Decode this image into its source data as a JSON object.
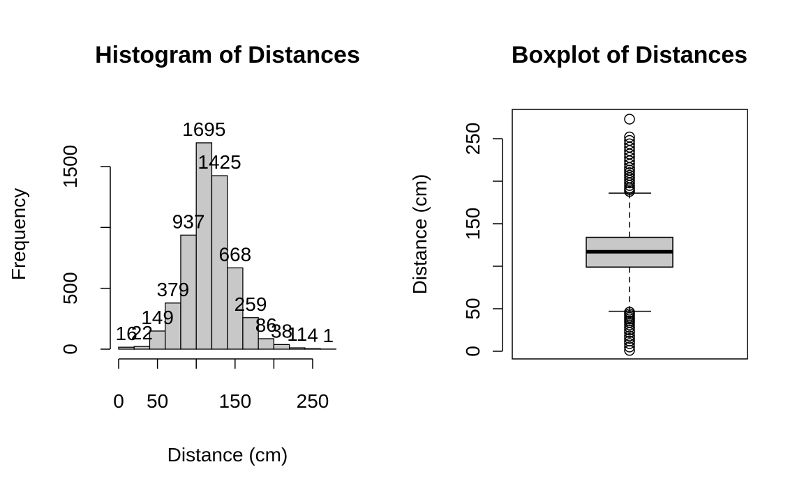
{
  "chart_data": [
    {
      "type": "bar",
      "title": "Histogram of Distances",
      "xlabel": "Distance (cm)",
      "ylabel": "Frequency",
      "bin_edges": [
        0,
        20,
        40,
        60,
        80,
        100,
        120,
        140,
        160,
        180,
        200,
        220,
        240,
        260,
        280
      ],
      "values": [
        16,
        22,
        149,
        379,
        937,
        1695,
        1425,
        668,
        259,
        86,
        38,
        11,
        4,
        1
      ],
      "value_labels": [
        "16",
        "22",
        "149",
        "379",
        "937",
        "1695",
        "1425",
        "668",
        "259",
        "86",
        "38",
        "11",
        "4",
        "1"
      ],
      "x_ticks": [
        0,
        50,
        100,
        150,
        200,
        250
      ],
      "x_tick_labels": [
        "0",
        "50",
        "",
        "150",
        "",
        "250"
      ],
      "y_ticks": [
        0,
        500,
        1000,
        1500
      ],
      "y_tick_labels": [
        "0",
        "500",
        "",
        "1500"
      ],
      "xlim": [
        0,
        280
      ],
      "ylim": [
        0,
        1800
      ],
      "bar_fill": "#c8c8c8",
      "grid": false
    },
    {
      "type": "boxplot",
      "title": "Boxplot of Distances",
      "ylabel": "Distance (cm)",
      "y_ticks": [
        0,
        50,
        100,
        150,
        200,
        250
      ],
      "y_tick_labels": [
        "0",
        "50",
        "",
        "150",
        "",
        "250"
      ],
      "ylim": [
        0,
        285
      ],
      "stats": {
        "lower_whisker": 47,
        "q1": 99,
        "median": 117,
        "q3": 134,
        "upper_whisker": 186
      },
      "outliers": [
        1,
        5,
        9,
        12,
        15,
        18,
        22,
        25,
        28,
        31,
        34,
        36,
        38,
        40,
        42,
        44,
        46,
        188,
        190,
        192,
        195,
        198,
        201,
        204,
        207,
        210,
        213,
        216,
        220,
        224,
        228,
        232,
        236,
        240,
        244,
        248,
        252,
        273
      ],
      "box_fill": "#c8c8c8",
      "grid": false
    }
  ]
}
